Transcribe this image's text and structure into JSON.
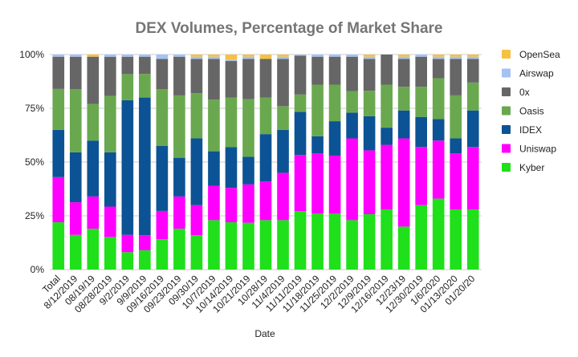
{
  "chart_data": {
    "type": "bar",
    "stacked": true,
    "percent": true,
    "title": "DEX Volumes, Percentage of Market Share",
    "xlabel": "Date",
    "ylabel": "",
    "ylim": [
      0,
      100
    ],
    "y_ticks": [
      "0%",
      "25%",
      "50%",
      "75%",
      "100%"
    ],
    "grid": true,
    "legend_position": "right",
    "categories": [
      "Total",
      "8/12/2019",
      "08/19/19",
      "08/28/2019",
      "9/2/2019",
      "9/9/2019",
      "09/16/2019",
      "09/23/2019",
      "09/30/19",
      "10/7/2019",
      "10/14/2019",
      "10/21/2019",
      "10/28/19",
      "11/4/2019",
      "11/11/2019",
      "11/18/2019",
      "11/25/2019",
      "12/2/2019",
      "12/9/2019",
      "12/16/2019",
      "12/23/19",
      "12/30/2019",
      "1/6/2020",
      "01/13/2020",
      "01/20/20"
    ],
    "series": [
      {
        "name": "Kyber",
        "color": "#1fe01a",
        "values": [
          22,
          16,
          19,
          15,
          8,
          9,
          14,
          19,
          16,
          23,
          22,
          22,
          23,
          23,
          27,
          26,
          26,
          23,
          26,
          28,
          20,
          30,
          33,
          28,
          28
        ]
      },
      {
        "name": "Uniswap",
        "color": "#ff00ff",
        "values": [
          21,
          15,
          15,
          14,
          8,
          7,
          13,
          15,
          14,
          16,
          16,
          18,
          18,
          22,
          26,
          28,
          27,
          38,
          30,
          30,
          41,
          27,
          27,
          26,
          29
        ]
      },
      {
        "name": "IDEX",
        "color": "#0b5394",
        "values": [
          22,
          23,
          26,
          25,
          62,
          64,
          30,
          18,
          31,
          16,
          19,
          13,
          22,
          20,
          20,
          8,
          16,
          12,
          16,
          8,
          13,
          14,
          10,
          7,
          17
        ]
      },
      {
        "name": "Oasis",
        "color": "#6aa84f",
        "values": [
          19,
          29,
          17,
          26,
          12,
          11,
          26,
          29,
          21,
          24,
          23,
          27,
          17,
          11,
          8,
          24,
          17,
          10,
          12,
          20,
          11,
          14,
          19,
          20,
          13
        ]
      },
      {
        "name": "0x",
        "color": "#666666",
        "values": [
          15,
          15,
          22,
          18,
          8,
          8,
          14,
          18,
          16,
          19,
          17,
          19,
          18,
          22,
          18,
          13,
          13,
          16,
          15,
          14,
          13,
          14,
          9,
          17,
          11
        ]
      },
      {
        "name": "Airswap",
        "color": "#a4c2f4",
        "values": [
          1,
          1,
          0,
          1,
          1,
          1,
          2,
          1,
          1,
          1,
          0.5,
          1,
          0,
          1,
          0.5,
          1,
          1,
          1,
          1,
          0,
          1,
          1,
          1,
          1,
          1
        ]
      },
      {
        "name": "OpenSea",
        "color": "#f6c142",
        "values": [
          0,
          0,
          1,
          0,
          0,
          0,
          0,
          0,
          1,
          1,
          2.5,
          1,
          2,
          1,
          0,
          0,
          0,
          0,
          1,
          0,
          1,
          0,
          1,
          1,
          1
        ]
      }
    ],
    "legend_order": [
      "OpenSea",
      "Airswap",
      "0x",
      "Oasis",
      "IDEX",
      "Uniswap",
      "Kyber"
    ]
  }
}
